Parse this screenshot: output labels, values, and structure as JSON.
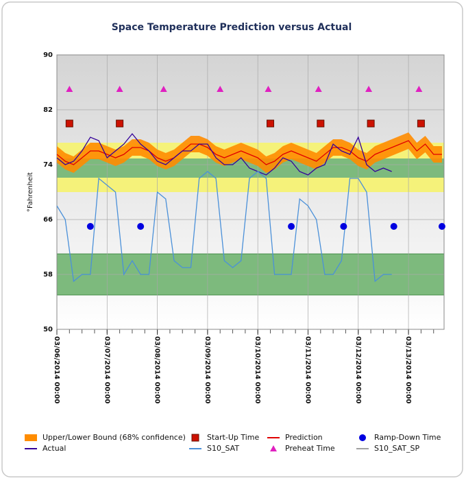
{
  "chart_data": {
    "type": "line",
    "title": "Space Temperature Prediction versus Actual",
    "y_label": "°Fahrenheit",
    "xlim": [
      "03/06/2014 00:00",
      "03/13/2014 17:00"
    ],
    "xticks": [
      "03/06/2014 00:00",
      "03/07/2014 00:00",
      "03/08/2014 00:00",
      "03/09/2014 00:00",
      "03/10/2014 00:00",
      "03/11/2014 00:00",
      "03/12/2014 00:00",
      "03/13/2014 00:00"
    ],
    "ylim": [
      50,
      90
    ],
    "yticks": [
      50,
      58,
      66,
      74,
      82,
      90
    ],
    "grid": true,
    "bands": [
      {
        "from": 70,
        "to": 77.2,
        "color": "#f5f27a"
      },
      {
        "from": 72.1,
        "to": 74.9,
        "color": "#7dba7d"
      },
      {
        "from": 55,
        "to": 61,
        "color": "#7dba7d"
      }
    ],
    "x": [
      "03/06/2014 00:00",
      "03/06/2014 04:00",
      "03/06/2014 08:00",
      "03/06/2014 12:00",
      "03/06/2014 16:00",
      "03/06/2014 20:00",
      "03/07/2014 00:00",
      "03/07/2014 04:00",
      "03/07/2014 08:00",
      "03/07/2014 12:00",
      "03/07/2014 16:00",
      "03/07/2014 20:00",
      "03/08/2014 00:00",
      "03/08/2014 04:00",
      "03/08/2014 08:00",
      "03/08/2014 12:00",
      "03/08/2014 16:00",
      "03/08/2014 20:00",
      "03/09/2014 00:00",
      "03/09/2014 04:00",
      "03/09/2014 08:00",
      "03/09/2014 12:00",
      "03/09/2014 16:00",
      "03/09/2014 20:00",
      "03/10/2014 00:00",
      "03/10/2014 04:00",
      "03/10/2014 08:00",
      "03/10/2014 12:00",
      "03/10/2014 16:00",
      "03/10/2014 20:00",
      "03/11/2014 00:00",
      "03/11/2014 04:00",
      "03/11/2014 08:00",
      "03/11/2014 12:00",
      "03/11/2014 16:00",
      "03/11/2014 20:00",
      "03/12/2014 00:00",
      "03/12/2014 04:00",
      "03/12/2014 08:00",
      "03/12/2014 12:00",
      "03/12/2014 16:00",
      "03/12/2014 20:00",
      "03/13/2014 00:00",
      "03/13/2014 04:00",
      "03/13/2014 08:00",
      "03/13/2014 12:00",
      "03/13/2014 16:00"
    ],
    "series": [
      {
        "name": "Upper/Lower Bound (68% confidence)",
        "kind": "band",
        "color": "#ff8c00",
        "values": [
          76.7,
          75.7,
          75.2,
          76.2,
          77.2,
          77.2,
          76.7,
          76.2,
          76.7,
          77.7,
          77.7,
          77.2,
          76.2,
          75.7,
          76.2,
          77.2,
          78.2,
          78.2,
          77.7,
          76.7,
          76.2,
          76.7,
          77.2,
          76.7,
          76.2,
          75.2,
          75.7,
          76.7,
          77.2,
          76.7,
          76.2,
          75.7,
          76.7,
          77.7,
          77.7,
          77.2,
          76.2,
          75.7,
          76.7,
          77.2,
          77.7,
          78.2,
          78.7,
          77.2,
          78.2,
          76.7,
          76.7
        ],
        "lower": [
          74.3,
          73.3,
          72.8,
          73.8,
          74.8,
          74.8,
          74.3,
          73.8,
          74.3,
          75.3,
          75.3,
          74.8,
          73.8,
          73.3,
          73.8,
          74.8,
          75.8,
          75.8,
          75.3,
          74.3,
          73.8,
          74.3,
          74.8,
          74.3,
          73.8,
          72.8,
          73.3,
          74.3,
          74.8,
          74.3,
          73.8,
          73.3,
          74.3,
          75.3,
          75.3,
          74.8,
          73.8,
          73.3,
          74.3,
          74.8,
          75.3,
          75.8,
          76.3,
          74.8,
          75.8,
          74.3,
          74.3
        ]
      },
      {
        "name": "Prediction",
        "kind": "line",
        "color": "#e00000",
        "values": [
          75.5,
          74.5,
          74,
          75,
          76,
          76,
          75.5,
          75,
          75.5,
          76.5,
          76.5,
          76,
          75,
          74.5,
          75,
          76,
          77,
          77,
          76.5,
          75.5,
          75,
          75.5,
          76,
          75.5,
          75,
          74,
          74.5,
          75.5,
          76,
          75.5,
          75,
          74.5,
          75.5,
          76.5,
          76.5,
          76,
          75,
          74.5,
          75.5,
          76,
          76.5,
          77,
          77.5,
          76,
          77,
          75.5,
          75.5
        ]
      },
      {
        "name": "Actual",
        "kind": "line",
        "color": "#330099",
        "values": [
          75,
          74,
          74.5,
          76,
          78,
          77.5,
          75,
          76,
          77,
          78.5,
          77,
          76,
          74.5,
          74,
          75,
          76,
          76,
          77,
          77,
          75,
          74,
          74,
          75,
          73.5,
          73,
          72.5,
          73.5,
          75,
          74.5,
          73,
          72.5,
          73.5,
          74,
          77,
          76,
          75.5,
          78,
          74,
          73,
          73.5,
          73,
          null,
          null,
          null,
          null,
          null,
          null
        ]
      },
      {
        "name": "S10_SAT",
        "kind": "line",
        "color": "#4a90d9",
        "values": [
          68,
          66,
          57,
          58,
          58,
          72,
          71,
          70,
          58,
          60,
          58,
          58,
          70,
          69,
          60,
          59,
          59,
          72,
          73,
          72,
          60,
          59,
          60,
          72,
          73,
          72,
          58,
          58,
          58,
          69,
          68,
          66,
          58,
          58,
          60,
          72,
          72,
          70,
          57,
          58,
          58,
          null,
          null,
          null,
          null,
          null,
          null
        ]
      },
      {
        "name": "S10_SAT_SP",
        "kind": "line",
        "color": "#a0a0a0",
        "values": [
          null,
          null,
          null,
          null,
          null,
          null,
          null,
          null,
          null,
          null,
          null,
          null,
          null,
          null,
          null,
          null,
          null,
          null,
          null,
          null,
          null,
          null,
          null,
          null,
          null,
          null,
          null,
          null,
          null,
          null,
          null,
          null,
          null,
          null,
          null,
          null,
          null,
          null,
          null,
          null,
          null,
          null,
          null,
          null,
          null,
          null,
          null
        ]
      },
      {
        "name": "Preheat Time",
        "kind": "triangle",
        "color": "#e020c0",
        "x": [
          "03/06/2014 06:00",
          "03/07/2014 06:00",
          "03/08/2014 03:00",
          "03/09/2014 06:00",
          "03/10/2014 05:00",
          "03/11/2014 05:00",
          "03/12/2014 05:00",
          "03/13/2014 05:00"
        ],
        "values": [
          85,
          85,
          85,
          85,
          85,
          85,
          85,
          85
        ]
      },
      {
        "name": "Start-Up Time",
        "kind": "square",
        "color": "#cc1100",
        "x": [
          "03/06/2014 06:00",
          "03/07/2014 06:00",
          "03/10/2014 06:00",
          "03/11/2014 06:00",
          "03/12/2014 06:00",
          "03/13/2014 06:00"
        ],
        "values": [
          80,
          80,
          80,
          80,
          80,
          80
        ]
      },
      {
        "name": "Ramp-Down Time",
        "kind": "circle",
        "color": "#0000e0",
        "x": [
          "03/06/2014 16:00",
          "03/07/2014 16:00",
          "03/10/2014 16:00",
          "03/11/2014 17:00",
          "03/12/2014 17:00",
          "03/13/2014 16:00"
        ],
        "values": [
          65,
          65,
          65,
          65,
          65,
          65
        ]
      }
    ],
    "legend_order": [
      0,
      2,
      6,
      3,
      1,
      5,
      7,
      4
    ]
  }
}
